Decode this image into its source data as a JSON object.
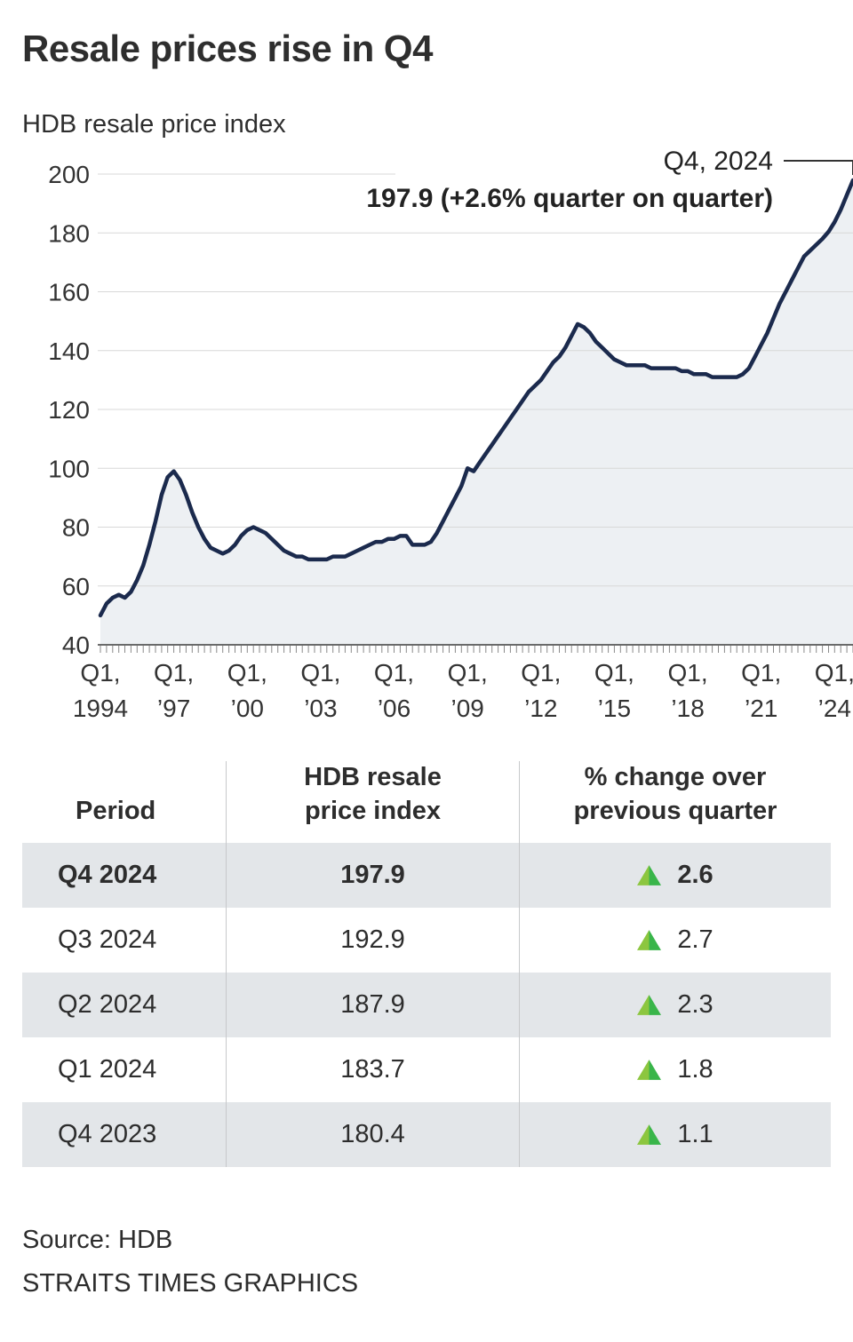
{
  "title": "Resale prices rise in Q4",
  "subtitle": "HDB resale price index",
  "annotation": {
    "label": "Q4, 2024",
    "value_line": "197.9 (+2.6% quarter on quarter)"
  },
  "chart_data": {
    "type": "area",
    "title": "HDB resale price index",
    "x_description": "Quarterly, Q1 1994 to Q4 2024",
    "x_tick_every": 12,
    "x_tick_labels": [
      [
        "Q1,",
        "1994"
      ],
      [
        "Q1,",
        "’97"
      ],
      [
        "Q1,",
        "’00"
      ],
      [
        "Q1,",
        "’03"
      ],
      [
        "Q1,",
        "’06"
      ],
      [
        "Q1,",
        "’09"
      ],
      [
        "Q1,",
        "’12"
      ],
      [
        "Q1,",
        "’15"
      ],
      [
        "Q1,",
        "’18"
      ],
      [
        "Q1,",
        "’21"
      ],
      [
        "Q1,",
        "’24"
      ]
    ],
    "ylim": [
      40,
      200
    ],
    "y_ticks": [
      40,
      60,
      80,
      100,
      120,
      140,
      160,
      180,
      200
    ],
    "grid": true,
    "values": [
      50,
      54,
      56,
      57,
      56,
      58,
      62,
      67,
      74,
      82,
      91,
      97,
      99,
      96,
      91,
      85,
      80,
      76,
      73,
      72,
      71,
      72,
      74,
      77,
      79,
      80,
      79,
      78,
      76,
      74,
      72,
      71,
      70,
      70,
      69,
      69,
      69,
      69,
      70,
      70,
      70,
      71,
      72,
      73,
      74,
      75,
      75,
      76,
      76,
      77,
      77,
      74,
      74,
      74,
      75,
      78,
      82,
      86,
      90,
      94,
      100,
      99,
      102,
      105,
      108,
      111,
      114,
      117,
      120,
      123,
      126,
      128,
      130,
      133,
      136,
      138,
      141,
      145,
      149,
      148,
      146,
      143,
      141,
      139,
      137,
      136,
      135,
      135,
      135,
      135,
      134,
      134,
      134,
      134,
      134,
      133,
      133,
      132,
      132,
      132,
      131,
      131,
      131,
      131,
      131,
      132,
      134,
      138,
      142,
      146,
      151,
      156,
      160,
      164,
      168,
      172,
      174,
      176,
      178,
      180.4,
      183.7,
      187.9,
      192.9,
      197.9
    ]
  },
  "colors": {
    "line": "#1b2a4d",
    "area": "#edf0f3",
    "grid": "#d8d8d8",
    "axis": "#3c3c3c",
    "tick": "#8a8a8a",
    "highlight_row": "#e3e6e9",
    "triangle_light": "#8cc63f",
    "triangle_dark": "#39b54a"
  },
  "table": {
    "header": {
      "period": "Period",
      "index_l1": "HDB resale",
      "index_l2": "price index",
      "change_l1": "% change over",
      "change_l2": "previous quarter"
    },
    "rows": [
      {
        "period": "Q4 2024",
        "index": "197.9",
        "change": "2.6",
        "direction": "up"
      },
      {
        "period": "Q3 2024",
        "index": "192.9",
        "change": "2.7",
        "direction": "up"
      },
      {
        "period": "Q2 2024",
        "index": "187.9",
        "change": "2.3",
        "direction": "up"
      },
      {
        "period": "Q1 2024",
        "index": "183.7",
        "change": "1.8",
        "direction": "up"
      },
      {
        "period": "Q4 2023",
        "index": "180.4",
        "change": "1.1",
        "direction": "up"
      }
    ]
  },
  "source": "Source: HDB",
  "credit": "STRAITS TIMES GRAPHICS"
}
